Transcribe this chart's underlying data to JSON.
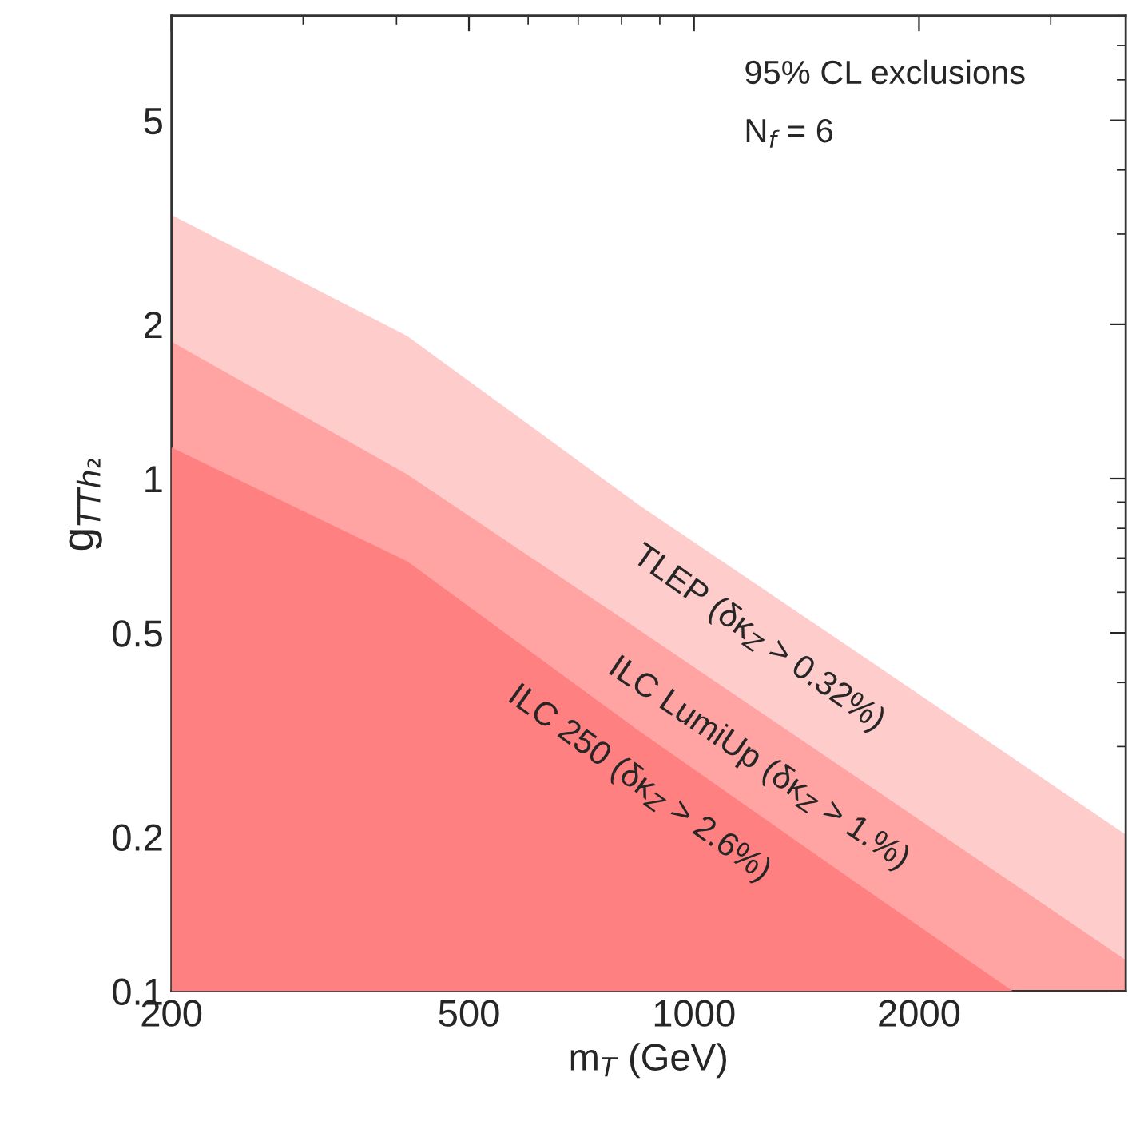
{
  "chart_data": {
    "type": "area",
    "xlabel": "m$_{T}$ (GeV)",
    "ylabel": "g$_{TTh₂}$",
    "log": "xy",
    "xlim": [
      200,
      3780
    ],
    "ylim": [
      0.1,
      8
    ],
    "xticks": [
      200,
      500,
      1000,
      2000
    ],
    "yticks": [
      0.1,
      0.2,
      0.5,
      1,
      2,
      5
    ],
    "grid": false,
    "legend": false,
    "annotations": [
      "95% CL exclusions",
      "N$_{f}$ = 6"
    ],
    "series": [
      {
        "name": "TLEP (δκ$_{Z}$ > 0.32%)",
        "color": "#ffcccc",
        "x": [
          200,
          413,
          844,
          1762,
          3780
        ],
        "values": [
          3.27,
          1.9,
          0.888,
          0.43,
          0.202
        ]
      },
      {
        "name": "ILC LumiUp (δκ$_{Z}$ > 1.%)",
        "color": "#ffa3a3",
        "x": [
          200,
          413,
          844,
          1762,
          3780
        ],
        "values": [
          1.85,
          1.02,
          0.507,
          0.245,
          0.115
        ]
      },
      {
        "name": "ILC 250 (δκ$_{Z}$ > 2.6%)",
        "color": "#ff8080",
        "x": [
          200,
          413,
          844,
          1762,
          2670
        ],
        "values": [
          1.15,
          0.69,
          0.322,
          0.152,
          0.1
        ]
      }
    ]
  }
}
